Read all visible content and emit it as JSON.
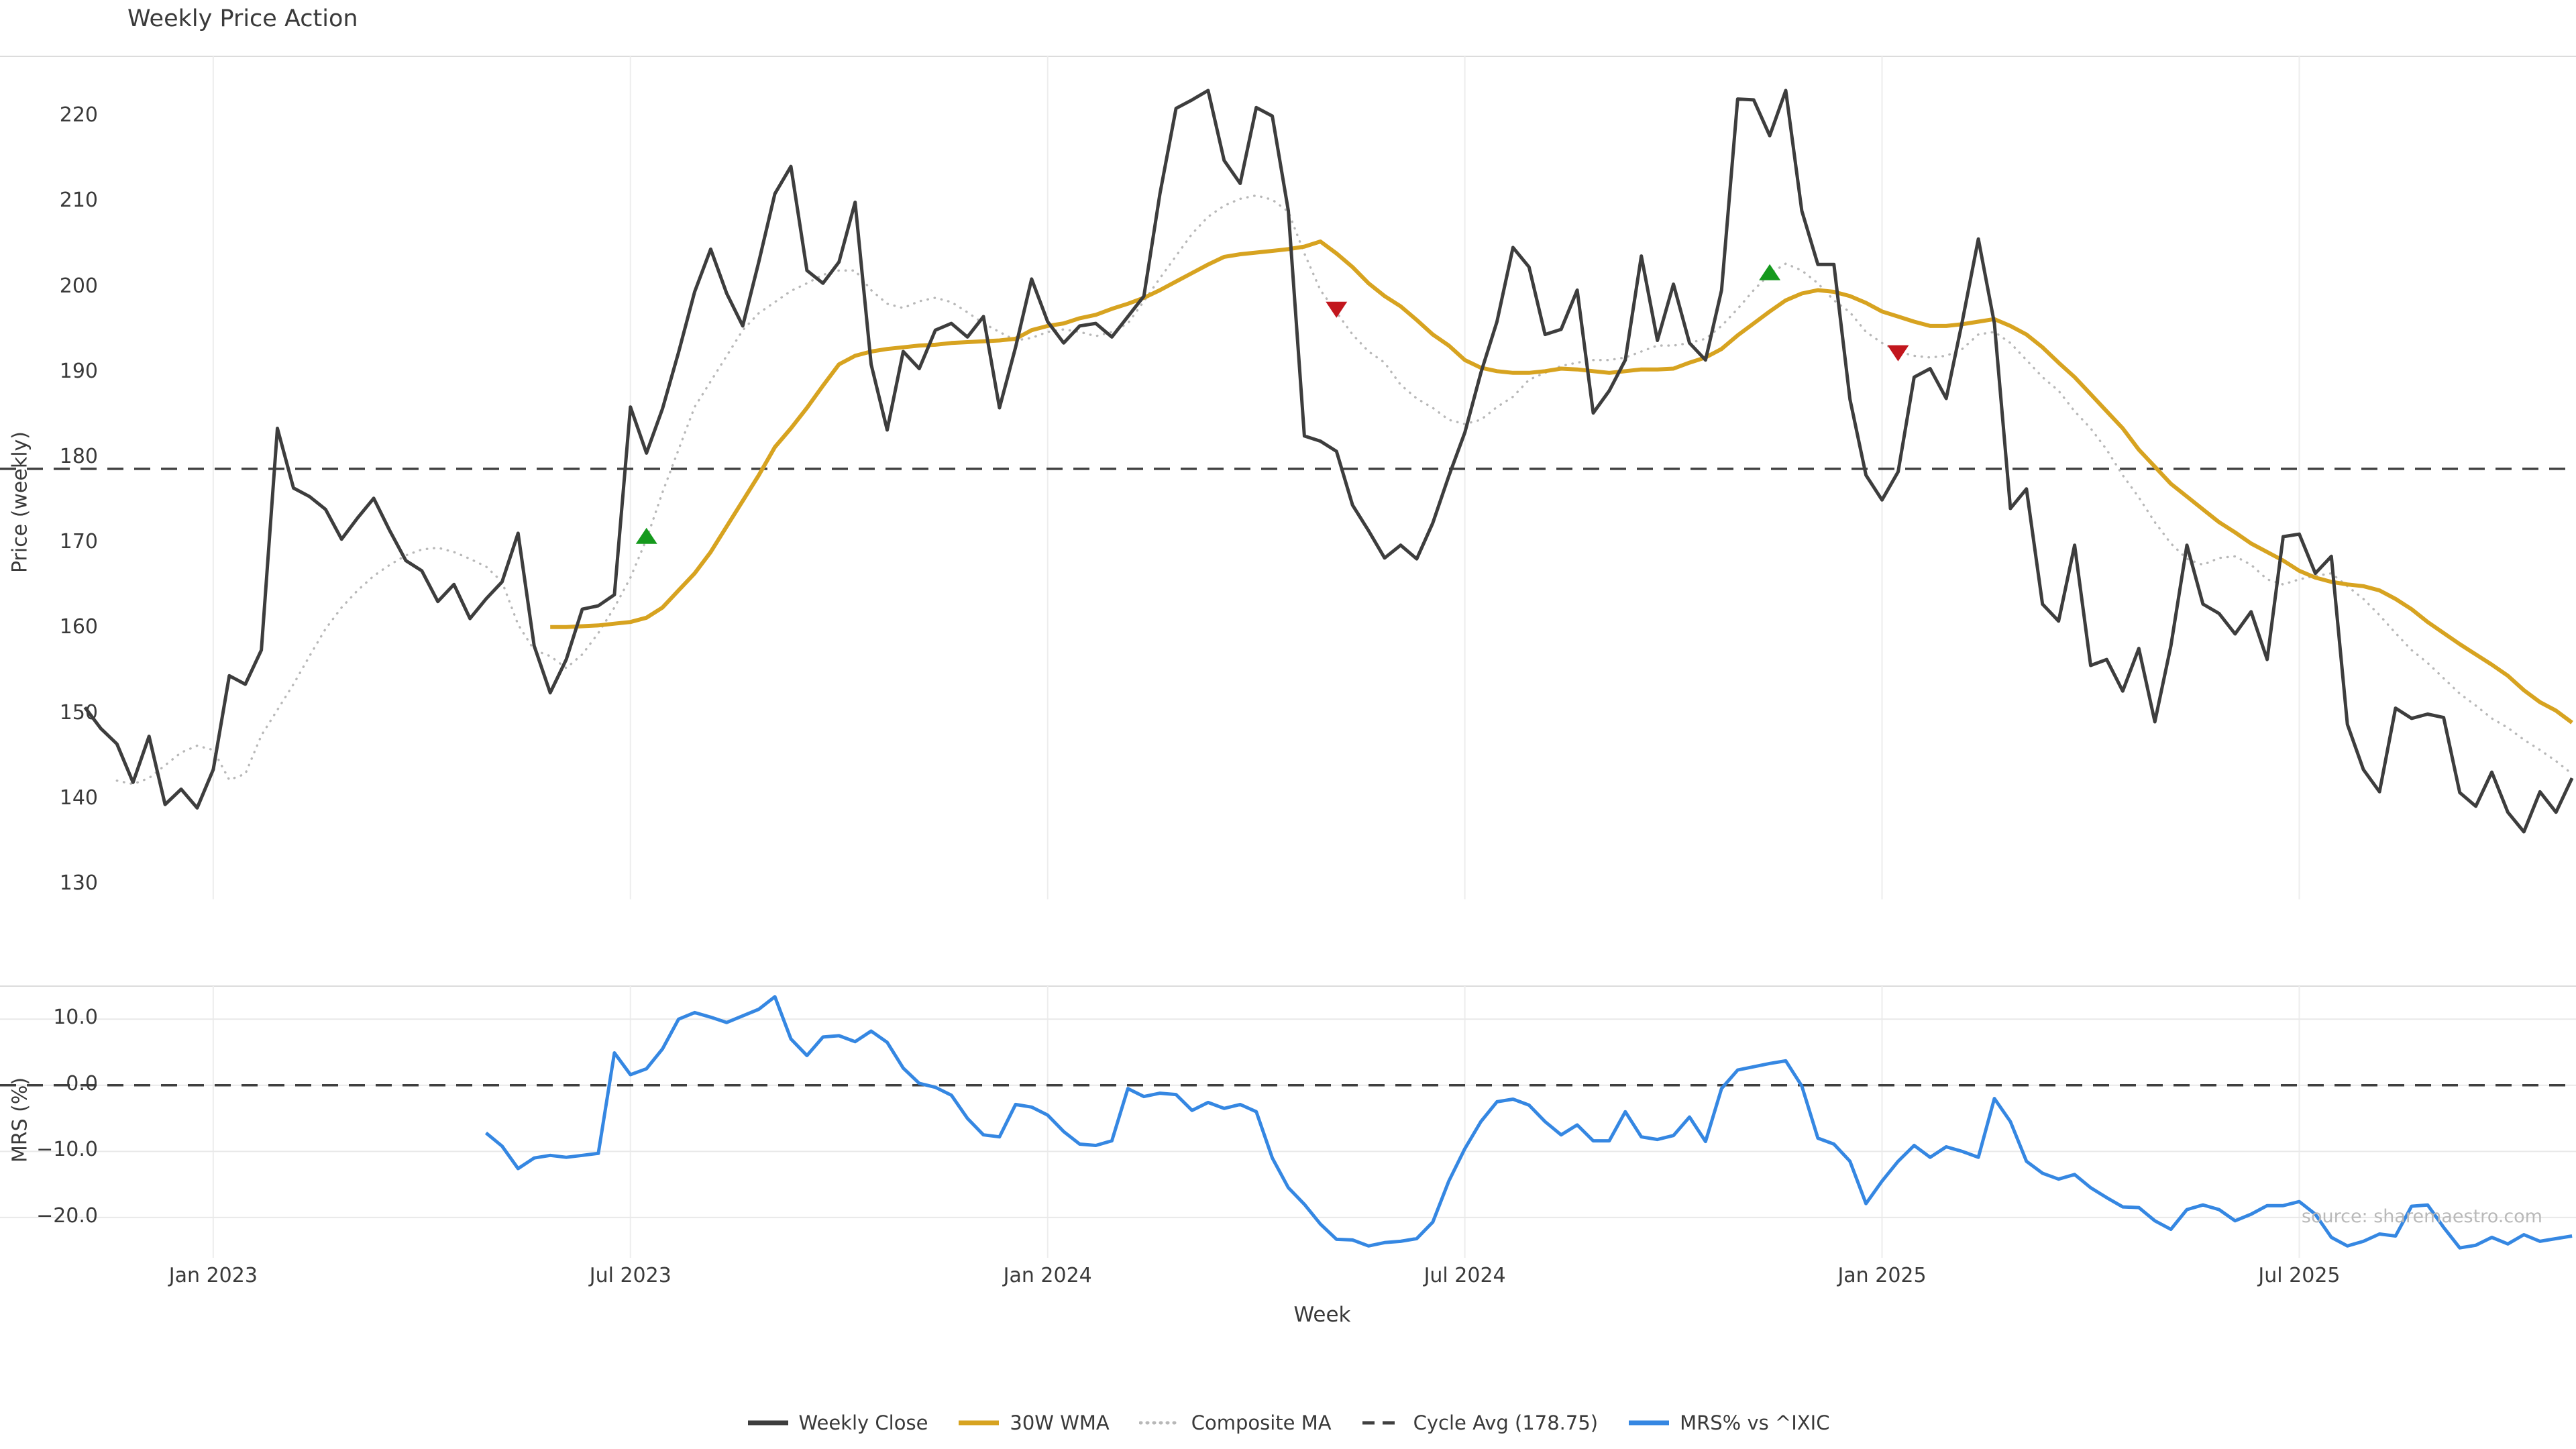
{
  "title": "Weekly Price Action",
  "axes": {
    "price_label": "Price (weekly)",
    "mrs_label": "MRS (%)",
    "x_label": "Week",
    "price_tick_labels": [
      "220",
      "210",
      "200",
      "190",
      "180",
      "170",
      "160",
      "150",
      "140",
      "130"
    ],
    "price_tick_values": [
      220,
      210,
      200,
      190,
      180,
      170,
      160,
      150,
      140,
      130
    ],
    "mrs_tick_labels": [
      "10.0",
      "0.0",
      "−10.0",
      "−20.0"
    ],
    "mrs_tick_values": [
      10,
      0,
      -10,
      -20
    ],
    "x_tick_labels": [
      "Jan 2023",
      "Jul 2023",
      "Jan 2024",
      "Jul 2024",
      "Jan 2025",
      "Jul 2025"
    ],
    "x_tick_indices": [
      8,
      34,
      60,
      86,
      112,
      138
    ]
  },
  "source_text": "source: sharemaestro.com",
  "legend": {
    "items": [
      {
        "label": "Weekly Close",
        "swatch": "solid",
        "color": "#3d3d3d"
      },
      {
        "label": "30W WMA",
        "swatch": "solid",
        "color": "#d7a320"
      },
      {
        "label": "Composite MA",
        "swatch": "dotted",
        "color": "#b8b8b8"
      },
      {
        "label": "Cycle Avg (178.75)",
        "swatch": "dashed",
        "color": "#3f3f3f"
      },
      {
        "label": "MRS% vs ^IXIC",
        "swatch": "solid",
        "color": "#3587e2"
      }
    ]
  },
  "colors": {
    "weekly_close": "#3d3d3d",
    "wma_30w": "#d7a320",
    "composite_ma": "#b8b8b8",
    "cycle_avg": "#3f3f3f",
    "mrs": "#3587e2",
    "buy_marker": "#15991d",
    "sell_marker": "#c2161d",
    "grid": "#ededed",
    "panel_border": "#dcdcdc",
    "text": "#3a3a3a"
  },
  "chart_data": {
    "type": "line",
    "title": "Weekly Price Action",
    "xlabel": "Week",
    "x_unit": "weekly index, index 8 = Jan 2023, 26-week tick spacing",
    "top_panel": {
      "ylabel": "Price (weekly)",
      "ylim": [
        128.3,
        227.1
      ],
      "cycle_avg": 178.75
    },
    "bottom_panel": {
      "ylabel": "MRS (%)",
      "ylim": [
        -26.1,
        15.0
      ],
      "zero_line": 0
    },
    "series": {
      "weekly_close": {
        "start_index": 0,
        "values": [
          150.8,
          148.3,
          146.5,
          142.0,
          147.4,
          139.4,
          141.2,
          139.0,
          143.5,
          154.5,
          153.5,
          157.5,
          183.5,
          176.5,
          175.5,
          174.0,
          170.5,
          173.0,
          175.3,
          171.5,
          168.0,
          166.8,
          163.2,
          165.2,
          161.2,
          163.5,
          165.5,
          171.2,
          158.0,
          152.5,
          156.4,
          162.3,
          162.7,
          164.0,
          186.0,
          180.6,
          185.8,
          192.4,
          199.5,
          204.5,
          199.3,
          195.5,
          203.0,
          211.0,
          214.2,
          202.0,
          200.5,
          203.0,
          210.0,
          191.0,
          183.3,
          192.5,
          190.5,
          195.0,
          195.8,
          194.2,
          196.6,
          185.9,
          193.0,
          201.0,
          196.0,
          193.5,
          195.5,
          195.8,
          194.2,
          196.6,
          199.0,
          211.0,
          221.0,
          222.0,
          223.1,
          214.9,
          212.2,
          221.1,
          220.1,
          209.0,
          182.6,
          182.0,
          180.8,
          174.5,
          171.5,
          168.3,
          169.8,
          168.2,
          172.4,
          177.9,
          183.0,
          190.0,
          196.0,
          204.7,
          202.4,
          194.5,
          195.1,
          199.7,
          185.3,
          187.9,
          191.5,
          203.7,
          193.8,
          200.4,
          193.5,
          191.5,
          199.7,
          222.1,
          222.0,
          217.8,
          223.1,
          209.0,
          202.7,
          202.7,
          186.9,
          178.0,
          175.1,
          178.4,
          189.5,
          190.5,
          187.0,
          196.0,
          205.7,
          195.8,
          174.1,
          176.4,
          162.9,
          160.9,
          169.8,
          155.7,
          156.4,
          152.7,
          157.7,
          149.1,
          158.0,
          169.8,
          162.9,
          161.8,
          159.4,
          162.0,
          156.4,
          170.8,
          171.1,
          166.5,
          168.5,
          148.8,
          143.5,
          140.9,
          150.7,
          149.5,
          150.0,
          149.6,
          140.8,
          139.2,
          143.2,
          138.5,
          136.2,
          140.9,
          138.5,
          142.5
        ]
      },
      "wma_30w": {
        "start_index": 29,
        "values": [
          160.2,
          160.2,
          160.3,
          160.4,
          160.6,
          160.8,
          161.3,
          162.5,
          164.5,
          166.5,
          169.0,
          172.0,
          175.0,
          178.0,
          181.3,
          183.5,
          185.9,
          188.5,
          191.0,
          192.0,
          192.5,
          192.8,
          193.0,
          193.2,
          193.3,
          193.5,
          193.6,
          193.7,
          193.8,
          194.0,
          195.0,
          195.5,
          195.8,
          196.4,
          196.8,
          197.5,
          198.1,
          198.8,
          199.7,
          200.7,
          201.7,
          202.7,
          203.6,
          203.9,
          204.1,
          204.3,
          204.5,
          204.8,
          205.4,
          204.0,
          202.4,
          200.5,
          199.0,
          197.8,
          196.2,
          194.5,
          193.2,
          191.5,
          190.6,
          190.2,
          190.0,
          190.0,
          190.2,
          190.5,
          190.4,
          190.2,
          190.0,
          190.2,
          190.4,
          190.4,
          190.5,
          191.2,
          191.8,
          192.8,
          194.4,
          195.8,
          197.2,
          198.5,
          199.3,
          199.7,
          199.5,
          199.0,
          198.2,
          197.2,
          196.6,
          196.0,
          195.5,
          195.5,
          195.7,
          196.0,
          196.3,
          195.5,
          194.5,
          193.0,
          191.2,
          189.5,
          187.5,
          185.5,
          183.5,
          181.0,
          179.0,
          177.0,
          175.5,
          174.0,
          172.5,
          171.3,
          170.0,
          169.0,
          168.0,
          166.8,
          166.0,
          165.5,
          165.2,
          165.0,
          164.5,
          163.5,
          162.3,
          160.8,
          159.5,
          158.2,
          157.0,
          155.8,
          154.5,
          152.8,
          151.4,
          150.4,
          149.0
        ]
      },
      "composite_ma": {
        "start_index": 2,
        "values": [
          142.2,
          141.8,
          142.5,
          144.0,
          145.5,
          146.3,
          145.8,
          142.3,
          143.0,
          147.5,
          150.5,
          153.5,
          156.8,
          160.0,
          162.5,
          164.5,
          166.2,
          167.5,
          168.6,
          169.3,
          169.5,
          169.0,
          168.2,
          167.3,
          165.5,
          160.5,
          157.5,
          156.8,
          155.4,
          157.0,
          159.5,
          162.5,
          166.0,
          170.5,
          176.0,
          181.0,
          186.0,
          189.0,
          192.0,
          195.0,
          197.0,
          198.3,
          199.6,
          200.5,
          201.5,
          202.0,
          202.0,
          199.7,
          198.1,
          197.6,
          198.4,
          198.8,
          198.3,
          197.1,
          195.8,
          194.8,
          193.8,
          194.1,
          194.8,
          195.1,
          194.8,
          194.3,
          194.8,
          195.8,
          198.4,
          201.1,
          203.7,
          206.3,
          208.3,
          209.6,
          210.4,
          210.8,
          210.3,
          208.9,
          204.0,
          199.7,
          197.1,
          194.5,
          192.5,
          191.2,
          188.6,
          187.0,
          185.9,
          184.5,
          184.0,
          184.5,
          186.0,
          187.2,
          189.2,
          190.0,
          190.8,
          191.2,
          191.5,
          191.5,
          191.8,
          192.5,
          193.2,
          193.2,
          193.5,
          194.0,
          195.5,
          197.5,
          199.7,
          201.6,
          202.8,
          202.0,
          200.5,
          198.5,
          197.1,
          194.8,
          193.5,
          192.5,
          192.0,
          191.8,
          192.0,
          192.8,
          194.5,
          194.8,
          193.5,
          191.5,
          189.5,
          187.9,
          185.5,
          183.5,
          181.0,
          178.0,
          175.4,
          172.5,
          170.0,
          168.2,
          167.5,
          168.3,
          168.5,
          167.5,
          165.8,
          165.2,
          165.8,
          166.2,
          166.5,
          165.0,
          163.5,
          161.6,
          159.5,
          157.5,
          156.0,
          154.2,
          152.4,
          151.0,
          149.5,
          148.4,
          147.0,
          145.8,
          144.5,
          143.0
        ]
      },
      "mrs_pct": {
        "start_index": 25,
        "values": [
          -7.2,
          -9.2,
          -12.6,
          -11.0,
          -10.6,
          -10.9,
          -10.6,
          -10.3,
          4.9,
          1.6,
          2.5,
          5.5,
          10.0,
          11.0,
          10.3,
          9.5,
          10.5,
          11.5,
          13.4,
          7.0,
          4.5,
          7.3,
          7.5,
          6.6,
          8.2,
          6.5,
          2.6,
          0.3,
          -0.3,
          -1.5,
          -5.0,
          -7.5,
          -7.8,
          -2.9,
          -3.3,
          -4.5,
          -7.0,
          -8.9,
          -9.1,
          -8.4,
          -0.5,
          -1.7,
          -1.2,
          -1.4,
          -3.8,
          -2.6,
          -3.5,
          -2.9,
          -4.0,
          -11.0,
          -15.5,
          -18.0,
          -21.0,
          -23.3,
          -23.4,
          -24.3,
          -23.8,
          -23.6,
          -23.2,
          -20.7,
          -14.5,
          -9.6,
          -5.5,
          -2.5,
          -2.1,
          -3.0,
          -5.5,
          -7.5,
          -6.0,
          -8.4,
          -8.4,
          -4.0,
          -7.8,
          -8.2,
          -7.6,
          -4.8,
          -8.5,
          -0.5,
          2.3,
          2.8,
          3.3,
          3.7,
          -0.1,
          -8.0,
          -8.9,
          -11.5,
          -17.9,
          -14.5,
          -11.5,
          -9.1,
          -10.9,
          -9.3,
          -10.0,
          -10.9,
          -2.0,
          -5.5,
          -11.5,
          -13.3,
          -14.2,
          -13.5,
          -15.5,
          -17.0,
          -18.4,
          -18.5,
          -20.5,
          -21.8,
          -18.8,
          -18.1,
          -18.8,
          -20.5,
          -19.5,
          -18.2,
          -18.2,
          -17.6,
          -19.5,
          -23.0,
          -24.3,
          -23.6,
          -22.5,
          -22.8,
          -18.3,
          -18.1,
          -21.5,
          -24.6,
          -24.2,
          -23.0,
          -24.0,
          -22.6,
          -23.6,
          -23.2,
          -22.8
        ]
      }
    },
    "markers": [
      {
        "type": "buy",
        "index": 35,
        "value": 170.9
      },
      {
        "type": "sell",
        "index": 78,
        "value": 197.4
      },
      {
        "type": "buy",
        "index": 105,
        "value": 201.8
      },
      {
        "type": "sell",
        "index": 113,
        "value": 192.3
      }
    ],
    "legend_entries": [
      "Weekly Close",
      "30W WMA",
      "Composite MA",
      "Cycle Avg (178.75)",
      "MRS% vs ^IXIC"
    ],
    "grid": "vertical light gridlines at half-year ticks; light horizontal gridlines in MRS panel",
    "legend_position": "bottom center"
  }
}
